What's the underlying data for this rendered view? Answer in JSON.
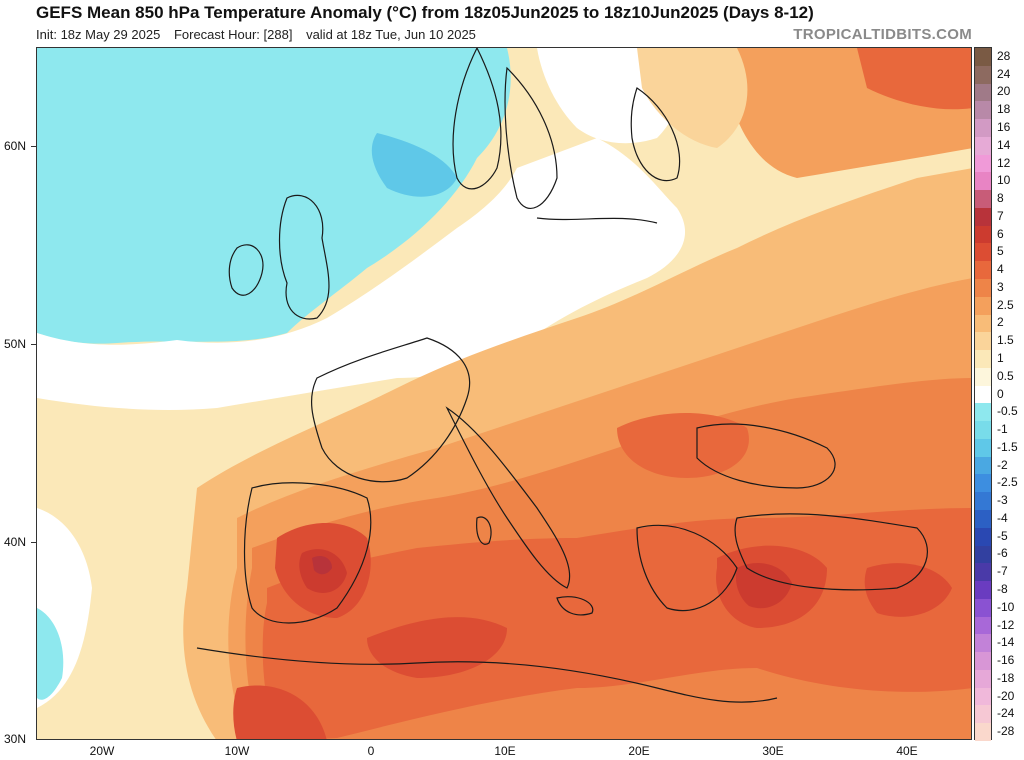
{
  "header": {
    "title": "GEFS Mean 850 hPa Temperature Anomaly (°C) from 18z05Jun2025 to 18z10Jun2025 (Days 8-12)",
    "init": "Init: 18z May 29 2025",
    "forecast_hour": "Forecast Hour: [288]",
    "valid": "valid at 18z Tue, Jun 10 2025",
    "brand": "TROPICALTIDBITS.COM"
  },
  "axes": {
    "lat_labels": [
      "60N",
      "50N",
      "40N",
      "30N"
    ],
    "lon_labels": [
      "20W",
      "10W",
      "0",
      "10E",
      "20E",
      "30E",
      "40E"
    ]
  },
  "colorbar": {
    "levels": [
      {
        "label": "28",
        "color": "#7a5a44"
      },
      {
        "label": "24",
        "color": "#8d6a60"
      },
      {
        "label": "20",
        "color": "#a07a88"
      },
      {
        "label": "18",
        "color": "#b889a8"
      },
      {
        "label": "16",
        "color": "#d29ac4"
      },
      {
        "label": "14",
        "color": "#e6aad6"
      },
      {
        "label": "12",
        "color": "#f09ad8"
      },
      {
        "label": "10",
        "color": "#e884c4"
      },
      {
        "label": "8",
        "color": "#c85c78"
      },
      {
        "label": "7",
        "color": "#b8333a"
      },
      {
        "label": "6",
        "color": "#cc3b2f"
      },
      {
        "label": "5",
        "color": "#dc4d33"
      },
      {
        "label": "4",
        "color": "#e8683c"
      },
      {
        "label": "3",
        "color": "#ee8448"
      },
      {
        "label": "2.5",
        "color": "#f4a05c"
      },
      {
        "label": "2",
        "color": "#f8bc78"
      },
      {
        "label": "1.5",
        "color": "#fad49a"
      },
      {
        "label": "1",
        "color": "#fbe8b8"
      },
      {
        "label": "0.5",
        "color": "#fdf6dc"
      },
      {
        "label": "0",
        "color": "#ffffff"
      },
      {
        "label": "-0.5",
        "color": "#8ee8ee"
      },
      {
        "label": "-1",
        "color": "#78dcea"
      },
      {
        "label": "-1.5",
        "color": "#5fc8e8"
      },
      {
        "label": "-2",
        "color": "#4aa8e2"
      },
      {
        "label": "-2.5",
        "color": "#3d8ee0"
      },
      {
        "label": "-3",
        "color": "#3478d4"
      },
      {
        "label": "-4",
        "color": "#2c60c4"
      },
      {
        "label": "-5",
        "color": "#2a48b2"
      },
      {
        "label": "-6",
        "color": "#3240a0"
      },
      {
        "label": "-7",
        "color": "#4a3aa8"
      },
      {
        "label": "-8",
        "color": "#6a3cc0"
      },
      {
        "label": "-10",
        "color": "#8a52d2"
      },
      {
        "label": "-12",
        "color": "#a868d8"
      },
      {
        "label": "-14",
        "color": "#c282d8"
      },
      {
        "label": "-16",
        "color": "#d896d6"
      },
      {
        "label": "-18",
        "color": "#e6a8d8"
      },
      {
        "label": "-20",
        "color": "#f0b8da"
      },
      {
        "label": "-24",
        "color": "#f6c8d4"
      },
      {
        "label": "-28",
        "color": "#fad8cc"
      }
    ]
  },
  "map": {
    "ocean_color": "#8ee8ee",
    "land_outline_color": "#1a1a1a",
    "legend_anchor": "right"
  }
}
